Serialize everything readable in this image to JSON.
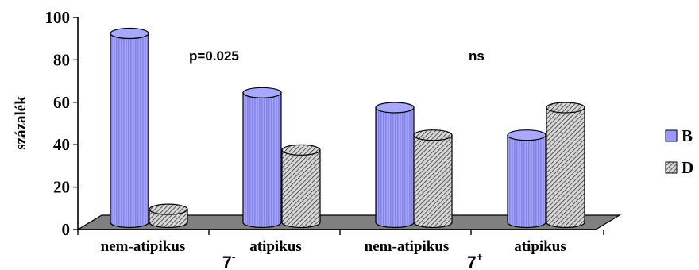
{
  "chart_data": {
    "type": "bar",
    "title": "",
    "xlabel": "",
    "ylabel": "százalék",
    "ylim": [
      0,
      100
    ],
    "yticks": [
      "0",
      "20",
      "40",
      "60",
      "80",
      "100"
    ],
    "categories": [
      "nem-atipikus",
      "atipikus",
      "nem-atipikus",
      "atipikus"
    ],
    "groups": [
      {
        "label": "7",
        "sup": "-"
      },
      {
        "label": "7",
        "sup": "+"
      }
    ],
    "series": [
      {
        "name": "B",
        "values": [
          91,
          63,
          56,
          43
        ],
        "color": "#9999ff"
      },
      {
        "name": "D",
        "values": [
          8,
          36,
          43,
          56
        ],
        "color": "#c0c0c0",
        "pattern": "diagonal-hatch"
      }
    ],
    "annotations": [
      "p=0.025",
      "ns"
    ],
    "legend_position": "right",
    "style": "3d-cylinder"
  }
}
